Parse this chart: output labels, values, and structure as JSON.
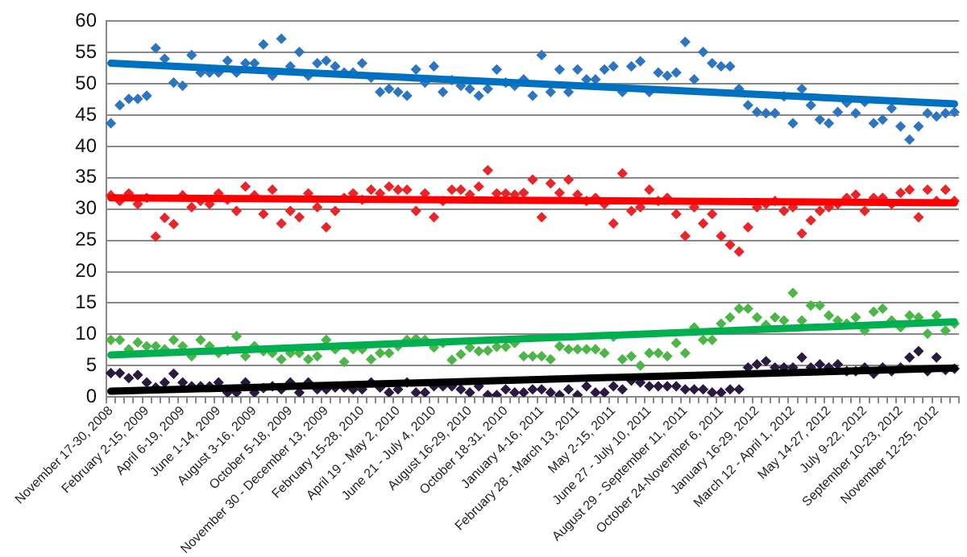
{
  "chart_data": {
    "type": "scatter",
    "categories": [
      "November 17-30, 2008",
      null,
      null,
      null,
      "February 2-15, 2009",
      null,
      null,
      null,
      "April 6-19, 2009",
      null,
      null,
      null,
      "June 1-14, 2009",
      null,
      null,
      null,
      "August 3-16, 2009",
      null,
      null,
      null,
      "October 5-18, 2009",
      null,
      null,
      null,
      "November 30 - December 13, 2009",
      null,
      null,
      null,
      "February 15-28, 2010",
      null,
      null,
      null,
      "April 19 - May 2, 2010",
      null,
      null,
      null,
      "June 21 - July 4, 2010",
      null,
      null,
      null,
      "August 16-29, 2010",
      null,
      null,
      null,
      "October 18-31, 2010",
      null,
      null,
      null,
      "January 4-16, 2011",
      null,
      null,
      null,
      "February 28 - March 13, 2011",
      null,
      null,
      null,
      "May 2-15, 2011",
      null,
      null,
      null,
      "June 27 - July 10, 2011",
      null,
      null,
      null,
      "August 29 - September 11, 2011",
      null,
      null,
      null,
      "October 24-November 6, 2011",
      null,
      null,
      null,
      "January 16-29, 2012",
      null,
      null,
      null,
      "March 12 - April 1, 2012",
      null,
      null,
      null,
      "May 14-27, 2012",
      null,
      null,
      null,
      "July 9-22, 2012",
      null,
      null,
      null,
      "September 10-23, 2012",
      null,
      null,
      null,
      "November 12-25, 2012",
      null,
      null
    ],
    "series": [
      {
        "color": "#2e75c0",
        "values": [
          43.7,
          46.6,
          47.6,
          47.6,
          48.1,
          55.7,
          54.0,
          50.2,
          49.7,
          54.6,
          51.8,
          51.8,
          51.8,
          53.7,
          51.8,
          53.3,
          53.3,
          56.3,
          51.3,
          57.2,
          52.8,
          55.1,
          51.3,
          53.3,
          53.7,
          52.8,
          51.8,
          51.8,
          53.3,
          51.0,
          48.7,
          49.2,
          48.7,
          48.1,
          52.3,
          50.2,
          52.8,
          48.7,
          50.6,
          49.7,
          49.2,
          48.1,
          49.2,
          52.3,
          50.2,
          49.7,
          50.7,
          48.1,
          54.6,
          48.7,
          52.3,
          48.7,
          52.3,
          50.7,
          50.7,
          52.3,
          52.8,
          48.7,
          52.8,
          53.6,
          48.7,
          51.8,
          51.3,
          51.8,
          56.7,
          50.7,
          55.1,
          53.3,
          52.8,
          52.8,
          49.2,
          46.6,
          45.5,
          45.3,
          45.3,
          48.0,
          43.7,
          49.2,
          46.6,
          44.3,
          43.7,
          45.5,
          47.0,
          45.3,
          47.1,
          43.7,
          44.3,
          46.1,
          43.2,
          41.1,
          43.2,
          45.3,
          44.8,
          45.3,
          45.5
        ]
      },
      {
        "color": "#e8262a",
        "values": [
          32.2,
          31.3,
          32.5,
          30.8,
          31.8,
          25.6,
          28.6,
          27.6,
          32.2,
          30.3,
          31.3,
          30.8,
          32.5,
          31.5,
          29.7,
          33.6,
          32.2,
          29.2,
          33.1,
          27.7,
          29.7,
          28.7,
          32.5,
          30.3,
          27.1,
          29.7,
          31.8,
          32.5,
          31.5,
          33.1,
          32.5,
          33.6,
          33.1,
          33.1,
          29.7,
          32.5,
          28.7,
          31.3,
          33.1,
          33.1,
          32.3,
          33.6,
          36.2,
          32.5,
          32.5,
          32.3,
          32.6,
          34.7,
          28.7,
          34.1,
          32.6,
          34.7,
          32.3,
          31.3,
          31.8,
          30.8,
          27.7,
          35.7,
          29.7,
          30.3,
          33.1,
          31.3,
          31.8,
          29.2,
          25.7,
          30.3,
          27.7,
          29.2,
          25.7,
          24.3,
          23.2,
          27.1,
          30.3,
          30.8,
          31.3,
          29.7,
          30.3,
          26.1,
          28.2,
          29.7,
          30.3,
          30.8,
          31.8,
          32.3,
          29.7,
          31.8,
          31.8,
          30.8,
          32.6,
          33.1,
          28.7,
          33.1,
          31.3,
          33.1,
          31.3
        ]
      },
      {
        "color": "#4cb748",
        "values": [
          9.1,
          9.1,
          7.6,
          8.7,
          8.1,
          8.1,
          7.6,
          9.1,
          8.1,
          6.5,
          9.1,
          8.1,
          7.0,
          7.4,
          9.7,
          6.5,
          8.1,
          7.3,
          7.0,
          6.0,
          7.0,
          7.0,
          6.0,
          6.5,
          9.1,
          7.6,
          5.6,
          7.6,
          7.6,
          6.0,
          7.0,
          7.0,
          8.1,
          9.1,
          9.3,
          9.1,
          7.9,
          8.6,
          5.9,
          6.8,
          7.9,
          7.3,
          7.4,
          8.0,
          8.0,
          8.6,
          6.5,
          6.5,
          6.5,
          6.0,
          8.1,
          7.6,
          7.6,
          7.6,
          7.6,
          7.0,
          9.6,
          6.0,
          6.5,
          5.0,
          7.0,
          7.0,
          6.5,
          8.6,
          7.0,
          11.1,
          9.1,
          9.1,
          11.7,
          12.7,
          14.1,
          14.1,
          12.7,
          11.5,
          12.7,
          12.2,
          16.6,
          12.2,
          14.6,
          14.6,
          13.0,
          12.2,
          11.7,
          12.7,
          10.6,
          13.6,
          14.1,
          12.2,
          11.1,
          13.0,
          12.7,
          10.1,
          13.0,
          10.6,
          11.7
        ]
      },
      {
        "color": "#2b1a40",
        "values": [
          3.8,
          3.8,
          3.0,
          3.5,
          2.3,
          1.5,
          2.3,
          3.7,
          2.3,
          1.7,
          1.7,
          1.7,
          2.3,
          0.7,
          0.7,
          2.3,
          0.7,
          1.4,
          1.7,
          1.2,
          2.3,
          0.7,
          2.3,
          1.2,
          1.2,
          1.5,
          1.5,
          1.2,
          1.2,
          2.3,
          1.5,
          0.7,
          1.2,
          2.3,
          0.7,
          0.7,
          1.7,
          1.7,
          1.7,
          1.2,
          0.7,
          1.7,
          0.3,
          0.3,
          1.2,
          0.7,
          0.7,
          1.2,
          1.2,
          0.7,
          0.3,
          1.2,
          0.3,
          1.7,
          0.7,
          0.7,
          1.7,
          1.2,
          2.6,
          2.3,
          1.7,
          1.7,
          1.7,
          1.7,
          1.2,
          1.2,
          1.2,
          0.7,
          0.7,
          1.2,
          1.2,
          4.7,
          5.2,
          5.7,
          4.7,
          4.7,
          4.7,
          6.3,
          4.7,
          5.2,
          4.7,
          5.2,
          4.1,
          4.1,
          4.7,
          3.7,
          4.7,
          4.1,
          4.7,
          6.3,
          7.3,
          4.1,
          6.3,
          4.3,
          4.5
        ]
      },
      {
        "type": "line",
        "marker": "none",
        "color": "#0070c0",
        "values": [
          53.3,
          null,
          null,
          null,
          null,
          null,
          null,
          null,
          null,
          null,
          null,
          null,
          null,
          null,
          null,
          null,
          null,
          null,
          null,
          null,
          null,
          null,
          null,
          null,
          null,
          null,
          null,
          null,
          null,
          null,
          null,
          null,
          null,
          null,
          null,
          null,
          null,
          null,
          null,
          null,
          null,
          null,
          null,
          null,
          null,
          null,
          null,
          null,
          null,
          null,
          null,
          null,
          null,
          null,
          null,
          null,
          null,
          null,
          null,
          null,
          null,
          null,
          null,
          null,
          null,
          null,
          null,
          null,
          null,
          null,
          null,
          null,
          null,
          null,
          null,
          null,
          null,
          null,
          null,
          null,
          null,
          null,
          null,
          null,
          null,
          null,
          null,
          null,
          null,
          null,
          null,
          null,
          null,
          null,
          46.8
        ]
      },
      {
        "type": "line",
        "marker": "none",
        "color": "#ff0000",
        "values": [
          31.8,
          null,
          null,
          null,
          null,
          null,
          null,
          null,
          null,
          null,
          null,
          null,
          null,
          null,
          null,
          null,
          null,
          null,
          null,
          null,
          null,
          null,
          null,
          null,
          null,
          null,
          null,
          null,
          null,
          null,
          null,
          null,
          null,
          null,
          null,
          null,
          null,
          null,
          null,
          null,
          null,
          null,
          null,
          null,
          null,
          null,
          null,
          null,
          null,
          null,
          null,
          null,
          null,
          null,
          null,
          null,
          null,
          null,
          null,
          null,
          null,
          null,
          null,
          null,
          null,
          null,
          null,
          null,
          null,
          null,
          null,
          null,
          null,
          null,
          null,
          null,
          null,
          null,
          null,
          null,
          null,
          null,
          null,
          null,
          null,
          null,
          null,
          null,
          null,
          null,
          null,
          null,
          null,
          null,
          31.0
        ]
      },
      {
        "type": "line",
        "marker": "none",
        "color": "#00b050",
        "values": [
          6.7,
          null,
          null,
          null,
          null,
          null,
          null,
          null,
          null,
          null,
          null,
          null,
          null,
          null,
          null,
          null,
          null,
          null,
          null,
          null,
          null,
          null,
          null,
          null,
          null,
          null,
          null,
          null,
          null,
          null,
          null,
          null,
          null,
          null,
          null,
          null,
          null,
          null,
          null,
          null,
          null,
          null,
          null,
          null,
          null,
          null,
          null,
          null,
          null,
          null,
          null,
          null,
          null,
          null,
          null,
          null,
          null,
          null,
          null,
          null,
          null,
          null,
          null,
          null,
          null,
          null,
          null,
          null,
          null,
          null,
          null,
          null,
          null,
          null,
          null,
          null,
          null,
          null,
          null,
          null,
          null,
          null,
          null,
          null,
          null,
          null,
          null,
          null,
          null,
          null,
          null,
          null,
          null,
          null,
          12.0
        ]
      },
      {
        "type": "line",
        "marker": "none",
        "color": "#000000",
        "values": [
          0.9,
          null,
          null,
          null,
          null,
          null,
          null,
          null,
          null,
          null,
          null,
          null,
          null,
          null,
          null,
          null,
          null,
          null,
          null,
          null,
          null,
          null,
          null,
          null,
          null,
          null,
          null,
          null,
          null,
          null,
          null,
          null,
          null,
          null,
          null,
          null,
          null,
          null,
          null,
          null,
          null,
          null,
          null,
          null,
          null,
          null,
          null,
          null,
          null,
          null,
          null,
          null,
          null,
          null,
          null,
          null,
          null,
          null,
          null,
          null,
          null,
          null,
          null,
          null,
          null,
          null,
          null,
          null,
          null,
          null,
          null,
          null,
          null,
          null,
          null,
          null,
          null,
          null,
          null,
          null,
          null,
          null,
          null,
          null,
          null,
          null,
          null,
          null,
          null,
          null,
          null,
          null,
          null,
          null,
          4.6
        ]
      }
    ],
    "ylim": [
      0,
      60
    ],
    "yticks": [
      0,
      5,
      10,
      15,
      20,
      25,
      30,
      35,
      40,
      45,
      50,
      55,
      60
    ],
    "grid": "y",
    "legend": false,
    "marker": "diamond"
  }
}
